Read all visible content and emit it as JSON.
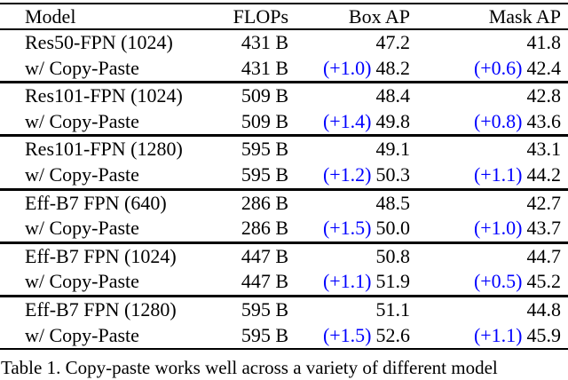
{
  "table": {
    "headers": {
      "model": "Model",
      "flops": "FLOPs",
      "box_ap": "Box AP",
      "mask_ap": "Mask AP"
    },
    "groups": [
      {
        "rows": [
          {
            "model": "Res50-FPN (1024)",
            "flops": "431 B",
            "box": "47.2",
            "mask": "41.8"
          },
          {
            "model": "w/ Copy-Paste",
            "flops": "431 B",
            "box_delta": "(+1.0)",
            "box": "48.2",
            "mask_delta": "(+0.6)",
            "mask": "42.4"
          }
        ]
      },
      {
        "rows": [
          {
            "model": "Res101-FPN (1024)",
            "flops": "509 B",
            "box": "48.4",
            "mask": "42.8"
          },
          {
            "model": "w/ Copy-Paste",
            "flops": "509 B",
            "box_delta": "(+1.4)",
            "box": "49.8",
            "mask_delta": "(+0.8)",
            "mask": "43.6"
          }
        ]
      },
      {
        "rows": [
          {
            "model": "Res101-FPN (1280)",
            "flops": "595 B",
            "box": "49.1",
            "mask": "43.1"
          },
          {
            "model": "w/ Copy-Paste",
            "flops": "595 B",
            "box_delta": "(+1.2)",
            "box": "50.3",
            "mask_delta": "(+1.1)",
            "mask": "44.2"
          }
        ]
      },
      {
        "rows": [
          {
            "model": "Eff-B7 FPN (640)",
            "flops": "286 B",
            "box": "48.5",
            "mask": "42.7"
          },
          {
            "model": "w/ Copy-Paste",
            "flops": "286 B",
            "box_delta": "(+1.5)",
            "box": "50.0",
            "mask_delta": "(+1.0)",
            "mask": "43.7"
          }
        ]
      },
      {
        "rows": [
          {
            "model": "Eff-B7 FPN (1024)",
            "flops": "447 B",
            "box": "50.8",
            "mask": "44.7"
          },
          {
            "model": "w/ Copy-Paste",
            "flops": "447 B",
            "box_delta": "(+1.1)",
            "box": "51.9",
            "mask_delta": "(+0.5)",
            "mask": "45.2"
          }
        ]
      },
      {
        "rows": [
          {
            "model": "Eff-B7 FPN (1280)",
            "flops": "595 B",
            "box": "51.1",
            "mask": "44.8"
          },
          {
            "model": "w/ Copy-Paste",
            "flops": "595 B",
            "box_delta": "(+1.5)",
            "box": "52.6",
            "mask_delta": "(+1.1)",
            "mask": "45.9"
          }
        ]
      }
    ]
  },
  "caption": "Table 1. Copy-paste works well across a variety of different model",
  "colors": {
    "delta": "#0000ff",
    "text": "#000000",
    "rule": "#000000"
  }
}
